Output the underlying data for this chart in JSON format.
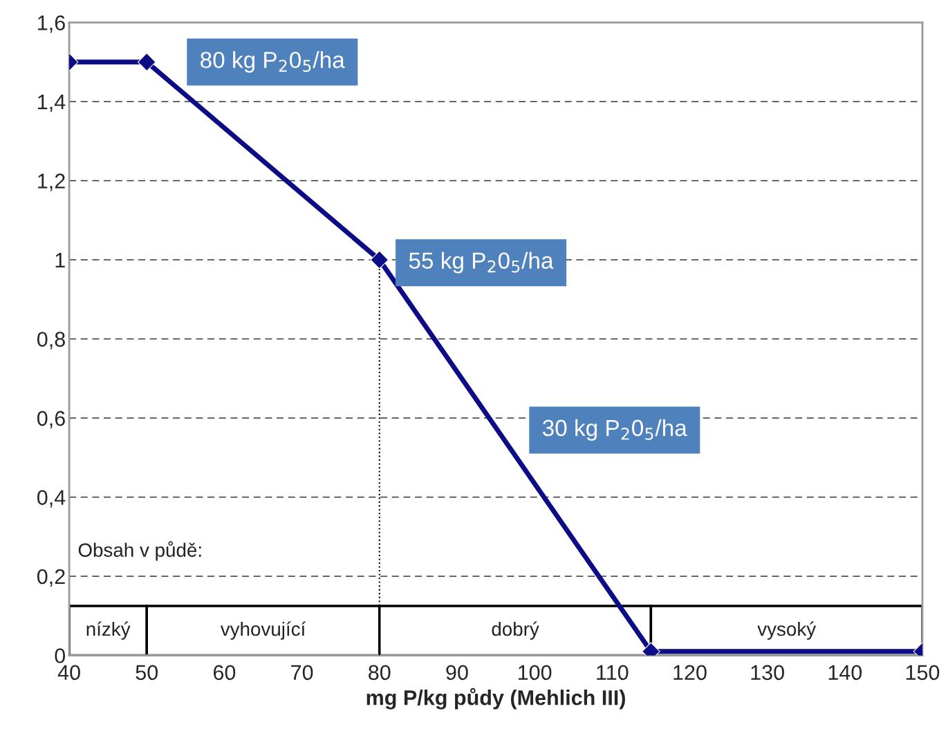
{
  "chart_data": {
    "type": "line",
    "xlabel": "mg P/kg půdy (Mehlich III)",
    "x": [
      40,
      50,
      80,
      115,
      150
    ],
    "series": [
      {
        "color": "#0c0c86",
        "values": [
          1.5,
          1.5,
          1.0,
          0.01,
          0.01
        ]
      }
    ],
    "marker": "diamond",
    "line_style": "solid",
    "xlim": [
      40,
      150
    ],
    "xticks": [
      40,
      50,
      60,
      70,
      80,
      90,
      100,
      110,
      120,
      130,
      140,
      150
    ],
    "ylim": [
      0,
      1.6
    ],
    "yticks": [
      0,
      {
        "value": 0.2,
        "label": "0,2"
      },
      {
        "value": 0.4,
        "label": "0,4"
      },
      {
        "value": 0.6,
        "label": "0,6"
      },
      {
        "value": 0.8,
        "label": "0,8"
      },
      1,
      {
        "value": 1.2,
        "label": "1,2"
      },
      {
        "value": 1.4,
        "label": "1,4"
      },
      {
        "value": 1.6,
        "label": "1,6"
      }
    ],
    "grid": "y",
    "ref_lines": [
      {
        "axis": "x",
        "value": 80,
        "line_style": "dotted",
        "color": "#000000"
      }
    ],
    "bands": [
      {
        "axis": "x",
        "from": 40,
        "to": 50,
        "label": "nízký"
      },
      {
        "axis": "x",
        "from": 50,
        "to": 80,
        "label": "vyhovující"
      },
      {
        "axis": "x",
        "from": 80,
        "to": 115,
        "label": "dobrý"
      },
      {
        "axis": "x",
        "from": 115,
        "to": 150,
        "label": "vysoký"
      }
    ],
    "annotations": [
      {
        "text": "80 kg P$_{2}$0$_{5}$/ha",
        "x": 50,
        "y": 1.5
      },
      {
        "text": "55 kg P$_{2}$0$_{5}$/ha",
        "x": 80,
        "y": 1.0
      },
      "30 kg P$_{2}$0$_{5}$/ha",
      "Obsah v půdě:"
    ]
  }
}
